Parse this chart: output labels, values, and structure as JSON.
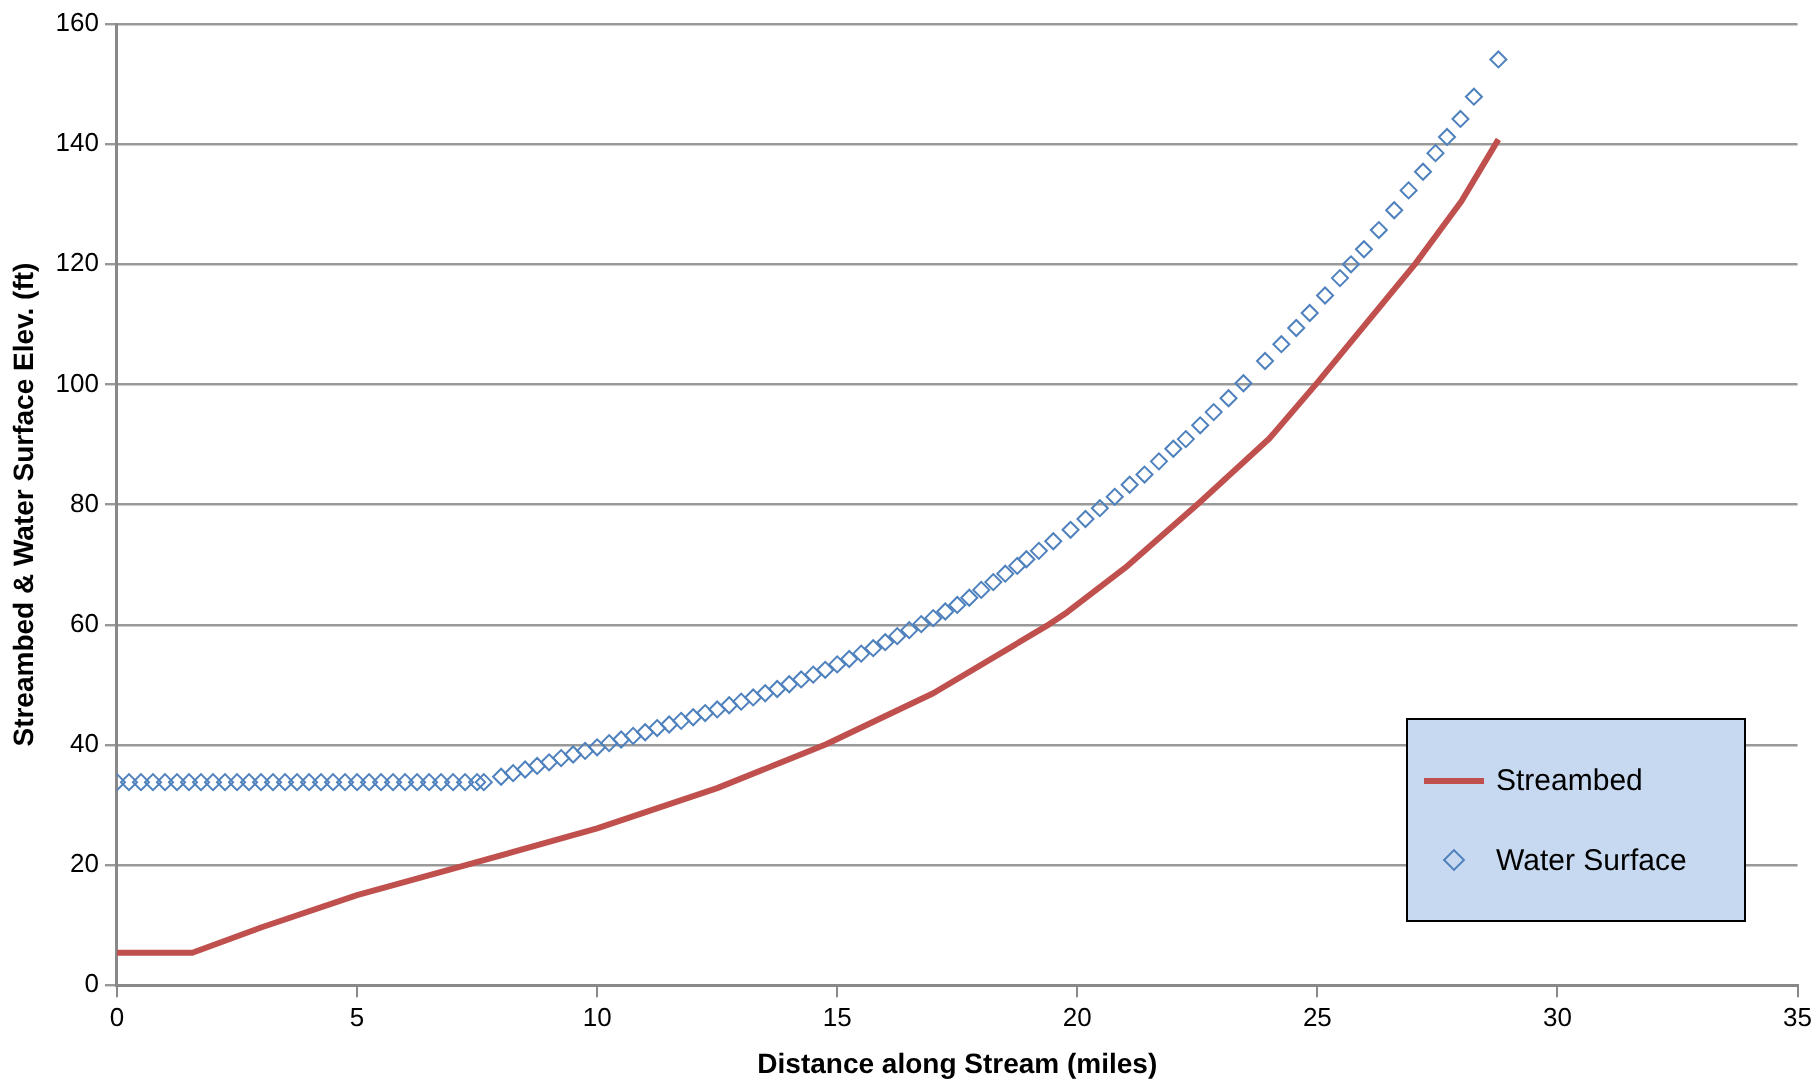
{
  "chart_data": {
    "type": "line",
    "xlabel": "Distance along Stream (miles)",
    "ylabel": "Streambed & Water Surface Elev. (ft)",
    "xlim": [
      0,
      35
    ],
    "xticks": [
      0,
      5,
      10,
      15,
      20,
      25,
      30,
      35
    ],
    "ylim": [
      0,
      160
    ],
    "yticks": [
      0,
      20,
      40,
      60,
      80,
      100,
      120,
      140,
      160
    ],
    "grid": "y",
    "legend": "bottom right",
    "series": [
      {
        "name": "Streambed",
        "color": "#c0504d",
        "marker": "none",
        "line_style": "solid",
        "x": [
          0,
          1.57,
          3,
          5,
          7.36,
          10,
          12.5,
          14.77,
          17,
          19.36,
          19.79,
          21,
          22.54,
          24,
          25,
          26,
          27.05,
          28,
          28.77
        ],
        "values": [
          5.4,
          5.4,
          9.6,
          15.0,
          20.2,
          26.1,
          32.8,
          40.1,
          48.6,
          59.8,
          62.1,
          69.5,
          80.3,
          91,
          100.3,
          110,
          120.2,
          130.5,
          140.8
        ]
      },
      {
        "name": "Water Surface",
        "type": "scatter",
        "color": "#4f81bd",
        "marker": "diamond",
        "x": [
          0,
          0.25,
          0.5,
          0.75,
          1,
          1.25,
          1.5,
          1.75,
          2,
          2.25,
          2.5,
          2.75,
          3,
          3.25,
          3.5,
          3.75,
          4,
          4.25,
          4.5,
          4.75,
          5,
          5.25,
          5.5,
          5.75,
          6,
          6.25,
          6.5,
          6.75,
          7,
          7.25,
          7.5,
          7.64,
          8,
          8.25,
          8.5,
          8.75,
          9,
          9.25,
          9.5,
          9.75,
          10,
          10.25,
          10.5,
          10.75,
          11,
          11.25,
          11.5,
          11.75,
          12,
          12.25,
          12.5,
          12.75,
          13,
          13.25,
          13.5,
          13.75,
          14,
          14.25,
          14.5,
          14.75,
          15,
          15.25,
          15.5,
          15.75,
          16,
          16.25,
          16.5,
          16.75,
          17,
          17.25,
          17.5,
          17.75,
          18,
          18.25,
          18.5,
          18.75,
          18.94,
          19.2,
          19.5,
          19.86,
          20.17,
          20.47,
          20.78,
          21.09,
          21.4,
          21.7,
          22.0,
          22.26,
          22.56,
          22.84,
          23.15,
          23.46,
          23.91,
          24.25,
          24.56,
          24.84,
          25.16,
          25.47,
          25.7,
          25.97,
          26.28,
          26.6,
          26.9,
          27.2,
          27.46,
          27.7,
          27.98,
          28.26,
          28.77
        ],
        "values": [
          33.8,
          33.8,
          33.8,
          33.8,
          33.8,
          33.8,
          33.8,
          33.8,
          33.8,
          33.8,
          33.8,
          33.8,
          33.8,
          33.8,
          33.8,
          33.8,
          33.8,
          33.8,
          33.8,
          33.8,
          33.8,
          33.8,
          33.8,
          33.8,
          33.8,
          33.8,
          33.8,
          33.8,
          33.8,
          33.8,
          33.8,
          33.8,
          34.7,
          35.3,
          35.9,
          36.5,
          37.1,
          37.8,
          38.4,
          39.0,
          39.6,
          40.3,
          40.9,
          41.5,
          42.1,
          42.8,
          43.4,
          44.0,
          44.6,
          45.3,
          45.9,
          46.6,
          47.2,
          47.9,
          48.6,
          49.3,
          50.1,
          50.9,
          51.7,
          52.5,
          53.4,
          54.3,
          55.2,
          56.1,
          57.1,
          58.1,
          59.1,
          60.1,
          61.1,
          62.2,
          63.3,
          64.5,
          65.8,
          67.1,
          68.5,
          69.8,
          70.9,
          72.3,
          73.9,
          75.8,
          77.6,
          79.4,
          81.3,
          83.3,
          85,
          87.2,
          89.3,
          90.9,
          93.2,
          95.4,
          97.7,
          100.2,
          103.9,
          106.7,
          109.4,
          111.9,
          114.8,
          117.7,
          120,
          122.5,
          125.7,
          129,
          132.3,
          135.4,
          138.5,
          141.2,
          144.2,
          147.9,
          154.1
        ]
      }
    ]
  }
}
